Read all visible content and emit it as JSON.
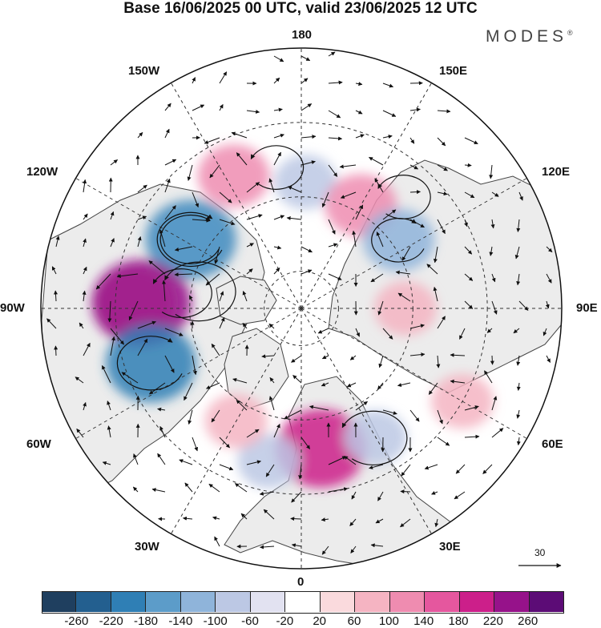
{
  "title": "Base 16/06/2025 00 UTC, valid 23/06/2025 12 UTC",
  "brand": "MODES",
  "brand_mark": "®",
  "longitude_labels": {
    "n180": "180",
    "w150": "150W",
    "e150": "150E",
    "w120": "120W",
    "e120": "120E",
    "w90": "90W",
    "e90": "90E",
    "w60": "60W",
    "e60": "60E",
    "w30": "30W",
    "e30": "30E",
    "s0": "0"
  },
  "wind_reference": "30",
  "colorbar": {
    "ticks": [
      "-260",
      "-220",
      "-180",
      "-140",
      "-100",
      "-60",
      "-20",
      "20",
      "60",
      "100",
      "140",
      "180",
      "220",
      "260"
    ],
    "colors": [
      "#1f3f5f",
      "#235f8f",
      "#2f7fb5",
      "#5c9cc9",
      "#8fb4da",
      "#bcc8e4",
      "#e2e2f1",
      "#ffffff",
      "#fadadd",
      "#f5b4c2",
      "#ef8cb0",
      "#e5579e",
      "#cc1f8a",
      "#96128a",
      "#5c0c76"
    ]
  },
  "anomaly_blobs": [
    {
      "sign": "neg",
      "level": 5,
      "lon": -122,
      "lat": 55
    },
    {
      "sign": "neg",
      "level": 4,
      "lon": -122,
      "lat": 55
    },
    {
      "sign": "pos",
      "level": 4,
      "lon": -92,
      "lat": 45
    },
    {
      "sign": "pos",
      "level": 6,
      "lon": -92,
      "lat": 47
    },
    {
      "sign": "neg",
      "level": 5,
      "lon": -70,
      "lat": 47
    },
    {
      "sign": "pos",
      "level": 3,
      "lon": -153,
      "lat": 50
    },
    {
      "sign": "neg",
      "level": 2,
      "lon": 178,
      "lat": 56
    },
    {
      "sign": "pos",
      "level": 3,
      "lon": 150,
      "lat": 58
    },
    {
      "sign": "neg",
      "level": 3,
      "lon": 125,
      "lat": 58
    },
    {
      "sign": "pos",
      "level": 2,
      "lon": 90,
      "lat": 62
    },
    {
      "sign": "pos",
      "level": 2,
      "lon": 60,
      "lat": 40
    },
    {
      "sign": "pos",
      "level": 5,
      "lon": 8,
      "lat": 52
    },
    {
      "sign": "neg",
      "level": 2,
      "lon": 30,
      "lat": 50
    },
    {
      "sign": "neg",
      "level": 2,
      "lon": -12,
      "lat": 48
    },
    {
      "sign": "pos",
      "level": 2,
      "lon": -30,
      "lat": 55
    }
  ]
}
